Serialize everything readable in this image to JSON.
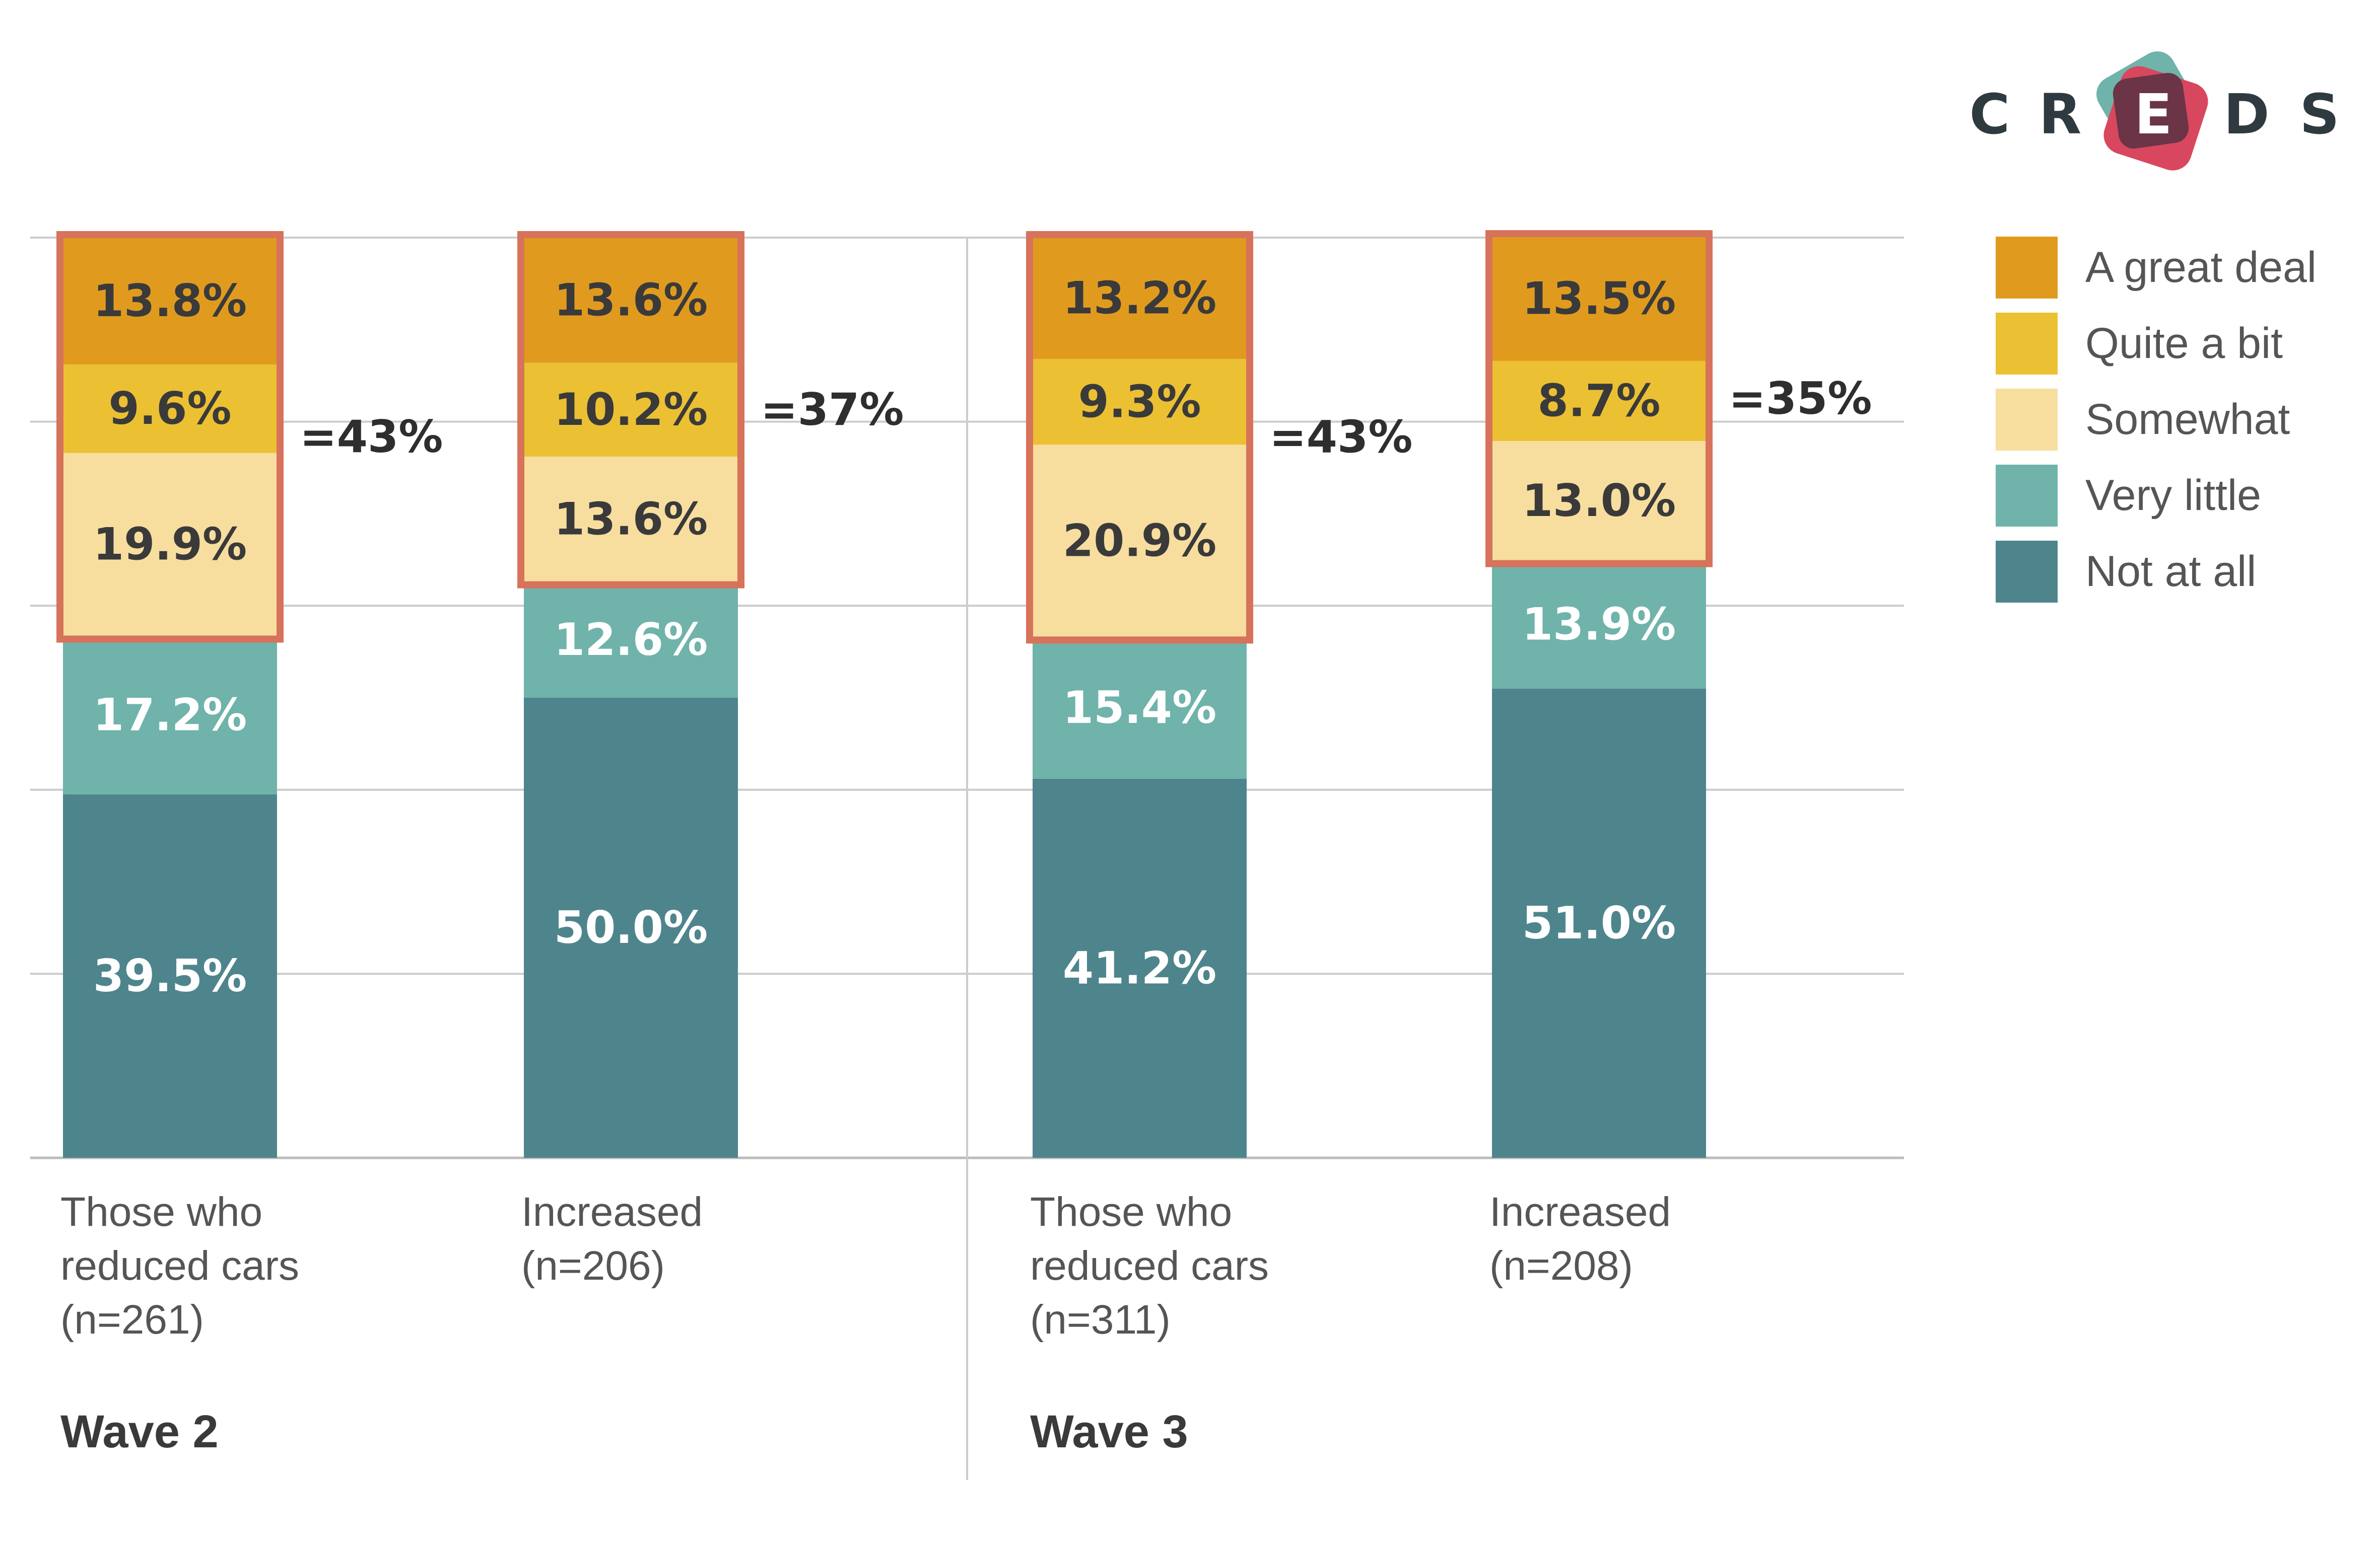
{
  "logo": {
    "letters": [
      "C",
      "R",
      "E",
      "D",
      "S"
    ],
    "text": "CREDS"
  },
  "colors": {
    "a_great_deal": "#E09B1F",
    "quite_a_bit": "#ECC033",
    "somewhat": "#F7DE9F",
    "very_little": "#6FB3AA",
    "not_at_all": "#4E858D",
    "highlight_border": "#D6735A",
    "grid": "#CCCCCC",
    "text_dark": "#3A3A3A",
    "logo_teal": "#6FB3AA",
    "logo_red": "#D9475E",
    "logo_dark": "#6B3447"
  },
  "chart_data": {
    "type": "bar",
    "stacked": true,
    "ylim": [
      0,
      100
    ],
    "grid": true,
    "legend_position": "top-right",
    "categories": [
      {
        "lines": [
          "Those who",
          "reduced cars",
          "(n=261)"
        ],
        "group": "Wave 2"
      },
      {
        "lines": [
          "Increased",
          "(n=206)"
        ],
        "group": "Wave 2"
      },
      {
        "lines": [
          "Those who",
          "reduced cars",
          "(n=311)"
        ],
        "group": "Wave 3"
      },
      {
        "lines": [
          "Increased",
          "(n=208)"
        ],
        "group": "Wave 3"
      }
    ],
    "groups": [
      "Wave 2",
      "Wave 3"
    ],
    "series": [
      {
        "name": "Not at all",
        "color_key": "not_at_all",
        "values": [
          39.5,
          50.0,
          41.2,
          51.0
        ],
        "labels": [
          "39.5%",
          "50.0%",
          "41.2%",
          "51.0%"
        ]
      },
      {
        "name": "Very little",
        "color_key": "very_little",
        "values": [
          17.2,
          12.6,
          15.4,
          13.9
        ],
        "labels": [
          "17.2%",
          "12.6%",
          "15.4%",
          "13.9%"
        ]
      },
      {
        "name": "Somewhat",
        "color_key": "somewhat",
        "values": [
          19.9,
          13.6,
          20.9,
          13.0
        ],
        "labels": [
          "19.9%",
          "13.6%",
          "20.9%",
          "13.0%"
        ]
      },
      {
        "name": "Quite a bit",
        "color_key": "quite_a_bit",
        "values": [
          9.6,
          10.2,
          9.3,
          8.7
        ],
        "labels": [
          "9.6%",
          "10.2%",
          "9.3%",
          "8.7%"
        ]
      },
      {
        "name": "A great deal",
        "color_key": "a_great_deal",
        "values": [
          13.8,
          13.6,
          13.2,
          13.5
        ],
        "labels": [
          "13.8%",
          "13.6%",
          "13.2%",
          "13.5%"
        ]
      }
    ],
    "legend_order": [
      "A great deal",
      "Quite a bit",
      "Somewhat",
      "Very little",
      "Not at all"
    ],
    "highlight_totals": [
      "=43%",
      "=37%",
      "=43%",
      "=35%"
    ]
  }
}
